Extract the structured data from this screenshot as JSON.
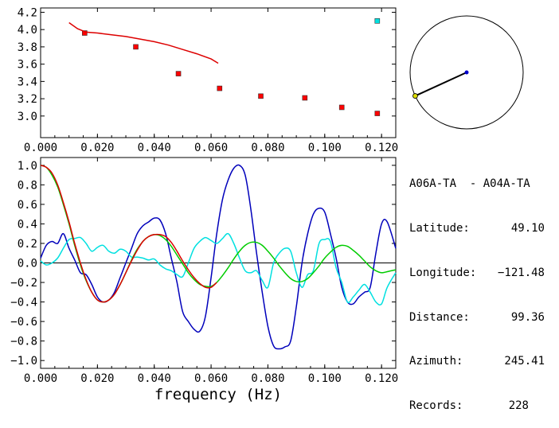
{
  "info": {
    "station_pair": "A06A-TA  - A04A-TA",
    "latitude_label": "Latitude:",
    "latitude": "49.10",
    "longitude_label": "Longitude:",
    "longitude": "−121.48",
    "distance_label": "Distance:",
    "distance": "99.36",
    "azimuth_label": "Azimuth:",
    "azimuth": "245.41",
    "records_label": "Records:",
    "records": "228"
  },
  "chart_data": [
    {
      "id": "dispersion",
      "type": "scatter",
      "xlim": [
        0.0,
        0.125
      ],
      "ylim": [
        2.75,
        4.25
      ],
      "xticks": [
        "0.000",
        "0.020",
        "0.040",
        "0.060",
        "0.080",
        "0.100",
        "0.120"
      ],
      "yticks": [
        "3.0",
        "3.2",
        "3.4",
        "3.6",
        "3.8",
        "4.0",
        "4.2"
      ],
      "ytick_values": [
        3.0,
        3.2,
        3.4,
        3.6,
        3.8,
        4.0,
        4.2
      ],
      "xtick_values": [
        0.0,
        0.02,
        0.04,
        0.06,
        0.08,
        0.1,
        0.12
      ],
      "series": [
        {
          "kind": "points",
          "color": "#ff0000",
          "x": [
            0.0155,
            0.0335,
            0.0485,
            0.063,
            0.0775,
            0.093,
            0.106,
            0.1185
          ],
          "y": [
            3.96,
            3.8,
            3.49,
            3.32,
            3.23,
            3.21,
            3.1,
            3.03
          ]
        },
        {
          "kind": "points",
          "color": "#00e0e0",
          "x": [
            0.1185
          ],
          "y": [
            4.1
          ]
        },
        {
          "kind": "line",
          "color": "#dd0000",
          "x": [
            0.01,
            0.013,
            0.016,
            0.02,
            0.025,
            0.03,
            0.035,
            0.04,
            0.045,
            0.05,
            0.055,
            0.06,
            0.0625
          ],
          "y": [
            4.08,
            4.01,
            3.97,
            3.96,
            3.94,
            3.92,
            3.89,
            3.86,
            3.82,
            3.77,
            3.72,
            3.66,
            3.61
          ]
        }
      ]
    },
    {
      "id": "azimuth",
      "type": "polar",
      "azimuth_deg": 245.41,
      "colors": {
        "ring": "#000000",
        "line": "#000000",
        "center": "#0000cc",
        "end": "#dddd00"
      }
    },
    {
      "id": "correlation",
      "type": "line",
      "xlabel": "frequency (Hz)",
      "xlim": [
        0.0,
        0.125
      ],
      "ylim": [
        -1.08,
        1.08
      ],
      "xticks": [
        "0.000",
        "0.020",
        "0.040",
        "0.060",
        "0.080",
        "0.100",
        "0.120"
      ],
      "xtick_values": [
        0.0,
        0.02,
        0.04,
        0.06,
        0.08,
        0.1,
        0.12
      ],
      "yticks": [
        "1.0",
        "0.8",
        "0.6",
        "0.4",
        "0.2",
        "0.0",
        "−0.2",
        "−0.4",
        "−0.6",
        "−0.8",
        "−1.0"
      ],
      "ytick_values": [
        1.0,
        0.8,
        0.6,
        0.4,
        0.2,
        0.0,
        -0.2,
        -0.4,
        -0.6,
        -0.8,
        -1.0
      ],
      "series": [
        {
          "color": "#0000bb",
          "x": [
            0.0,
            0.002,
            0.004,
            0.006,
            0.008,
            0.01,
            0.012,
            0.014,
            0.016,
            0.018,
            0.02,
            0.022,
            0.024,
            0.026,
            0.028,
            0.03,
            0.032,
            0.034,
            0.036,
            0.038,
            0.04,
            0.042,
            0.044,
            0.046,
            0.048,
            0.05,
            0.052,
            0.054,
            0.056,
            0.058,
            0.06,
            0.062,
            0.064,
            0.066,
            0.068,
            0.07,
            0.072,
            0.074,
            0.076,
            0.078,
            0.08,
            0.082,
            0.084,
            0.086,
            0.088,
            0.09,
            0.092,
            0.094,
            0.096,
            0.098,
            0.1,
            0.102,
            0.104,
            0.106,
            0.108,
            0.11,
            0.112,
            0.114,
            0.116,
            0.118,
            0.12,
            0.122,
            0.125
          ],
          "y": [
            0.05,
            0.18,
            0.22,
            0.2,
            0.3,
            0.15,
            0.03,
            -0.1,
            -0.12,
            -0.22,
            -0.35,
            -0.4,
            -0.38,
            -0.3,
            -0.15,
            0.0,
            0.15,
            0.3,
            0.38,
            0.42,
            0.46,
            0.44,
            0.3,
            0.05,
            -0.2,
            -0.5,
            -0.6,
            -0.68,
            -0.7,
            -0.55,
            -0.15,
            0.3,
            0.65,
            0.85,
            0.97,
            1.0,
            0.9,
            0.55,
            0.1,
            -0.3,
            -0.65,
            -0.85,
            -0.88,
            -0.86,
            -0.8,
            -0.45,
            0.0,
            0.3,
            0.5,
            0.56,
            0.52,
            0.3,
            0.05,
            -0.25,
            -0.4,
            -0.42,
            -0.35,
            -0.3,
            -0.25,
            0.1,
            0.4,
            0.42,
            0.15
          ]
        },
        {
          "color": "#00e0e0",
          "x": [
            0.0,
            0.002,
            0.004,
            0.006,
            0.008,
            0.01,
            0.012,
            0.014,
            0.016,
            0.018,
            0.02,
            0.022,
            0.024,
            0.026,
            0.028,
            0.03,
            0.032,
            0.034,
            0.036,
            0.038,
            0.04,
            0.042,
            0.044,
            0.046,
            0.048,
            0.05,
            0.052,
            0.054,
            0.056,
            0.058,
            0.06,
            0.062,
            0.064,
            0.066,
            0.068,
            0.07,
            0.072,
            0.074,
            0.076,
            0.078,
            0.08,
            0.082,
            0.084,
            0.086,
            0.088,
            0.09,
            0.092,
            0.094,
            0.096,
            0.098,
            0.1,
            0.102,
            0.104,
            0.106,
            0.108,
            0.11,
            0.112,
            0.114,
            0.116,
            0.118,
            0.12,
            0.122,
            0.125
          ],
          "y": [
            0.02,
            -0.02,
            0.0,
            0.05,
            0.15,
            0.24,
            0.25,
            0.26,
            0.2,
            0.12,
            0.16,
            0.18,
            0.12,
            0.1,
            0.14,
            0.12,
            0.06,
            0.06,
            0.05,
            0.03,
            0.04,
            -0.02,
            -0.06,
            -0.08,
            -0.12,
            -0.14,
            0.0,
            0.15,
            0.22,
            0.26,
            0.23,
            0.2,
            0.25,
            0.3,
            0.2,
            0.05,
            -0.08,
            -0.1,
            -0.08,
            -0.18,
            -0.25,
            0.0,
            0.1,
            0.15,
            0.12,
            -0.1,
            -0.25,
            -0.12,
            -0.08,
            0.2,
            0.24,
            0.22,
            -0.05,
            -0.2,
            -0.4,
            -0.35,
            -0.28,
            -0.22,
            -0.3,
            -0.4,
            -0.42,
            -0.25,
            -0.1
          ]
        },
        {
          "color": "#00cc00",
          "x": [
            0.0,
            0.002,
            0.004,
            0.006,
            0.008,
            0.01,
            0.012,
            0.014,
            0.016,
            0.018,
            0.02,
            0.022,
            0.024,
            0.026,
            0.028,
            0.03,
            0.032,
            0.034,
            0.036,
            0.038,
            0.04,
            0.042,
            0.044,
            0.046,
            0.048,
            0.05,
            0.052,
            0.054,
            0.056,
            0.058,
            0.06,
            0.062,
            0.064,
            0.066,
            0.068,
            0.07,
            0.072,
            0.074,
            0.076,
            0.078,
            0.08,
            0.082,
            0.084,
            0.086,
            0.088,
            0.09,
            0.092,
            0.094,
            0.096,
            0.098,
            0.1,
            0.102,
            0.104,
            0.106,
            0.108,
            0.11,
            0.112,
            0.114,
            0.116,
            0.118,
            0.12,
            0.122,
            0.125
          ],
          "y": [
            1.0,
            0.98,
            0.9,
            0.78,
            0.6,
            0.4,
            0.18,
            -0.02,
            -0.18,
            -0.3,
            -0.38,
            -0.4,
            -0.38,
            -0.32,
            -0.22,
            -0.1,
            0.03,
            0.14,
            0.22,
            0.27,
            0.29,
            0.28,
            0.24,
            0.17,
            0.08,
            -0.01,
            -0.1,
            -0.17,
            -0.22,
            -0.24,
            -0.24,
            -0.2,
            -0.13,
            -0.05,
            0.04,
            0.12,
            0.18,
            0.21,
            0.21,
            0.18,
            0.12,
            0.05,
            -0.03,
            -0.1,
            -0.16,
            -0.19,
            -0.19,
            -0.16,
            -0.1,
            -0.03,
            0.05,
            0.11,
            0.16,
            0.18,
            0.17,
            0.13,
            0.08,
            0.02,
            -0.04,
            -0.08,
            -0.1,
            -0.09,
            -0.07
          ]
        },
        {
          "color": "#dd0000",
          "x": [
            0.0,
            0.002,
            0.004,
            0.006,
            0.008,
            0.01,
            0.012,
            0.014,
            0.016,
            0.018,
            0.02,
            0.022,
            0.024,
            0.026,
            0.028,
            0.03,
            0.032,
            0.034,
            0.036,
            0.038,
            0.04,
            0.042,
            0.044,
            0.046,
            0.048,
            0.05,
            0.052,
            0.054,
            0.056,
            0.058,
            0.06,
            0.062
          ],
          "y": [
            1.0,
            0.98,
            0.92,
            0.8,
            0.62,
            0.42,
            0.2,
            0.0,
            -0.17,
            -0.3,
            -0.38,
            -0.4,
            -0.38,
            -0.32,
            -0.22,
            -0.1,
            0.02,
            0.13,
            0.22,
            0.27,
            0.29,
            0.29,
            0.27,
            0.21,
            0.12,
            0.02,
            -0.07,
            -0.15,
            -0.21,
            -0.25,
            -0.25,
            -0.2
          ]
        }
      ]
    }
  ]
}
